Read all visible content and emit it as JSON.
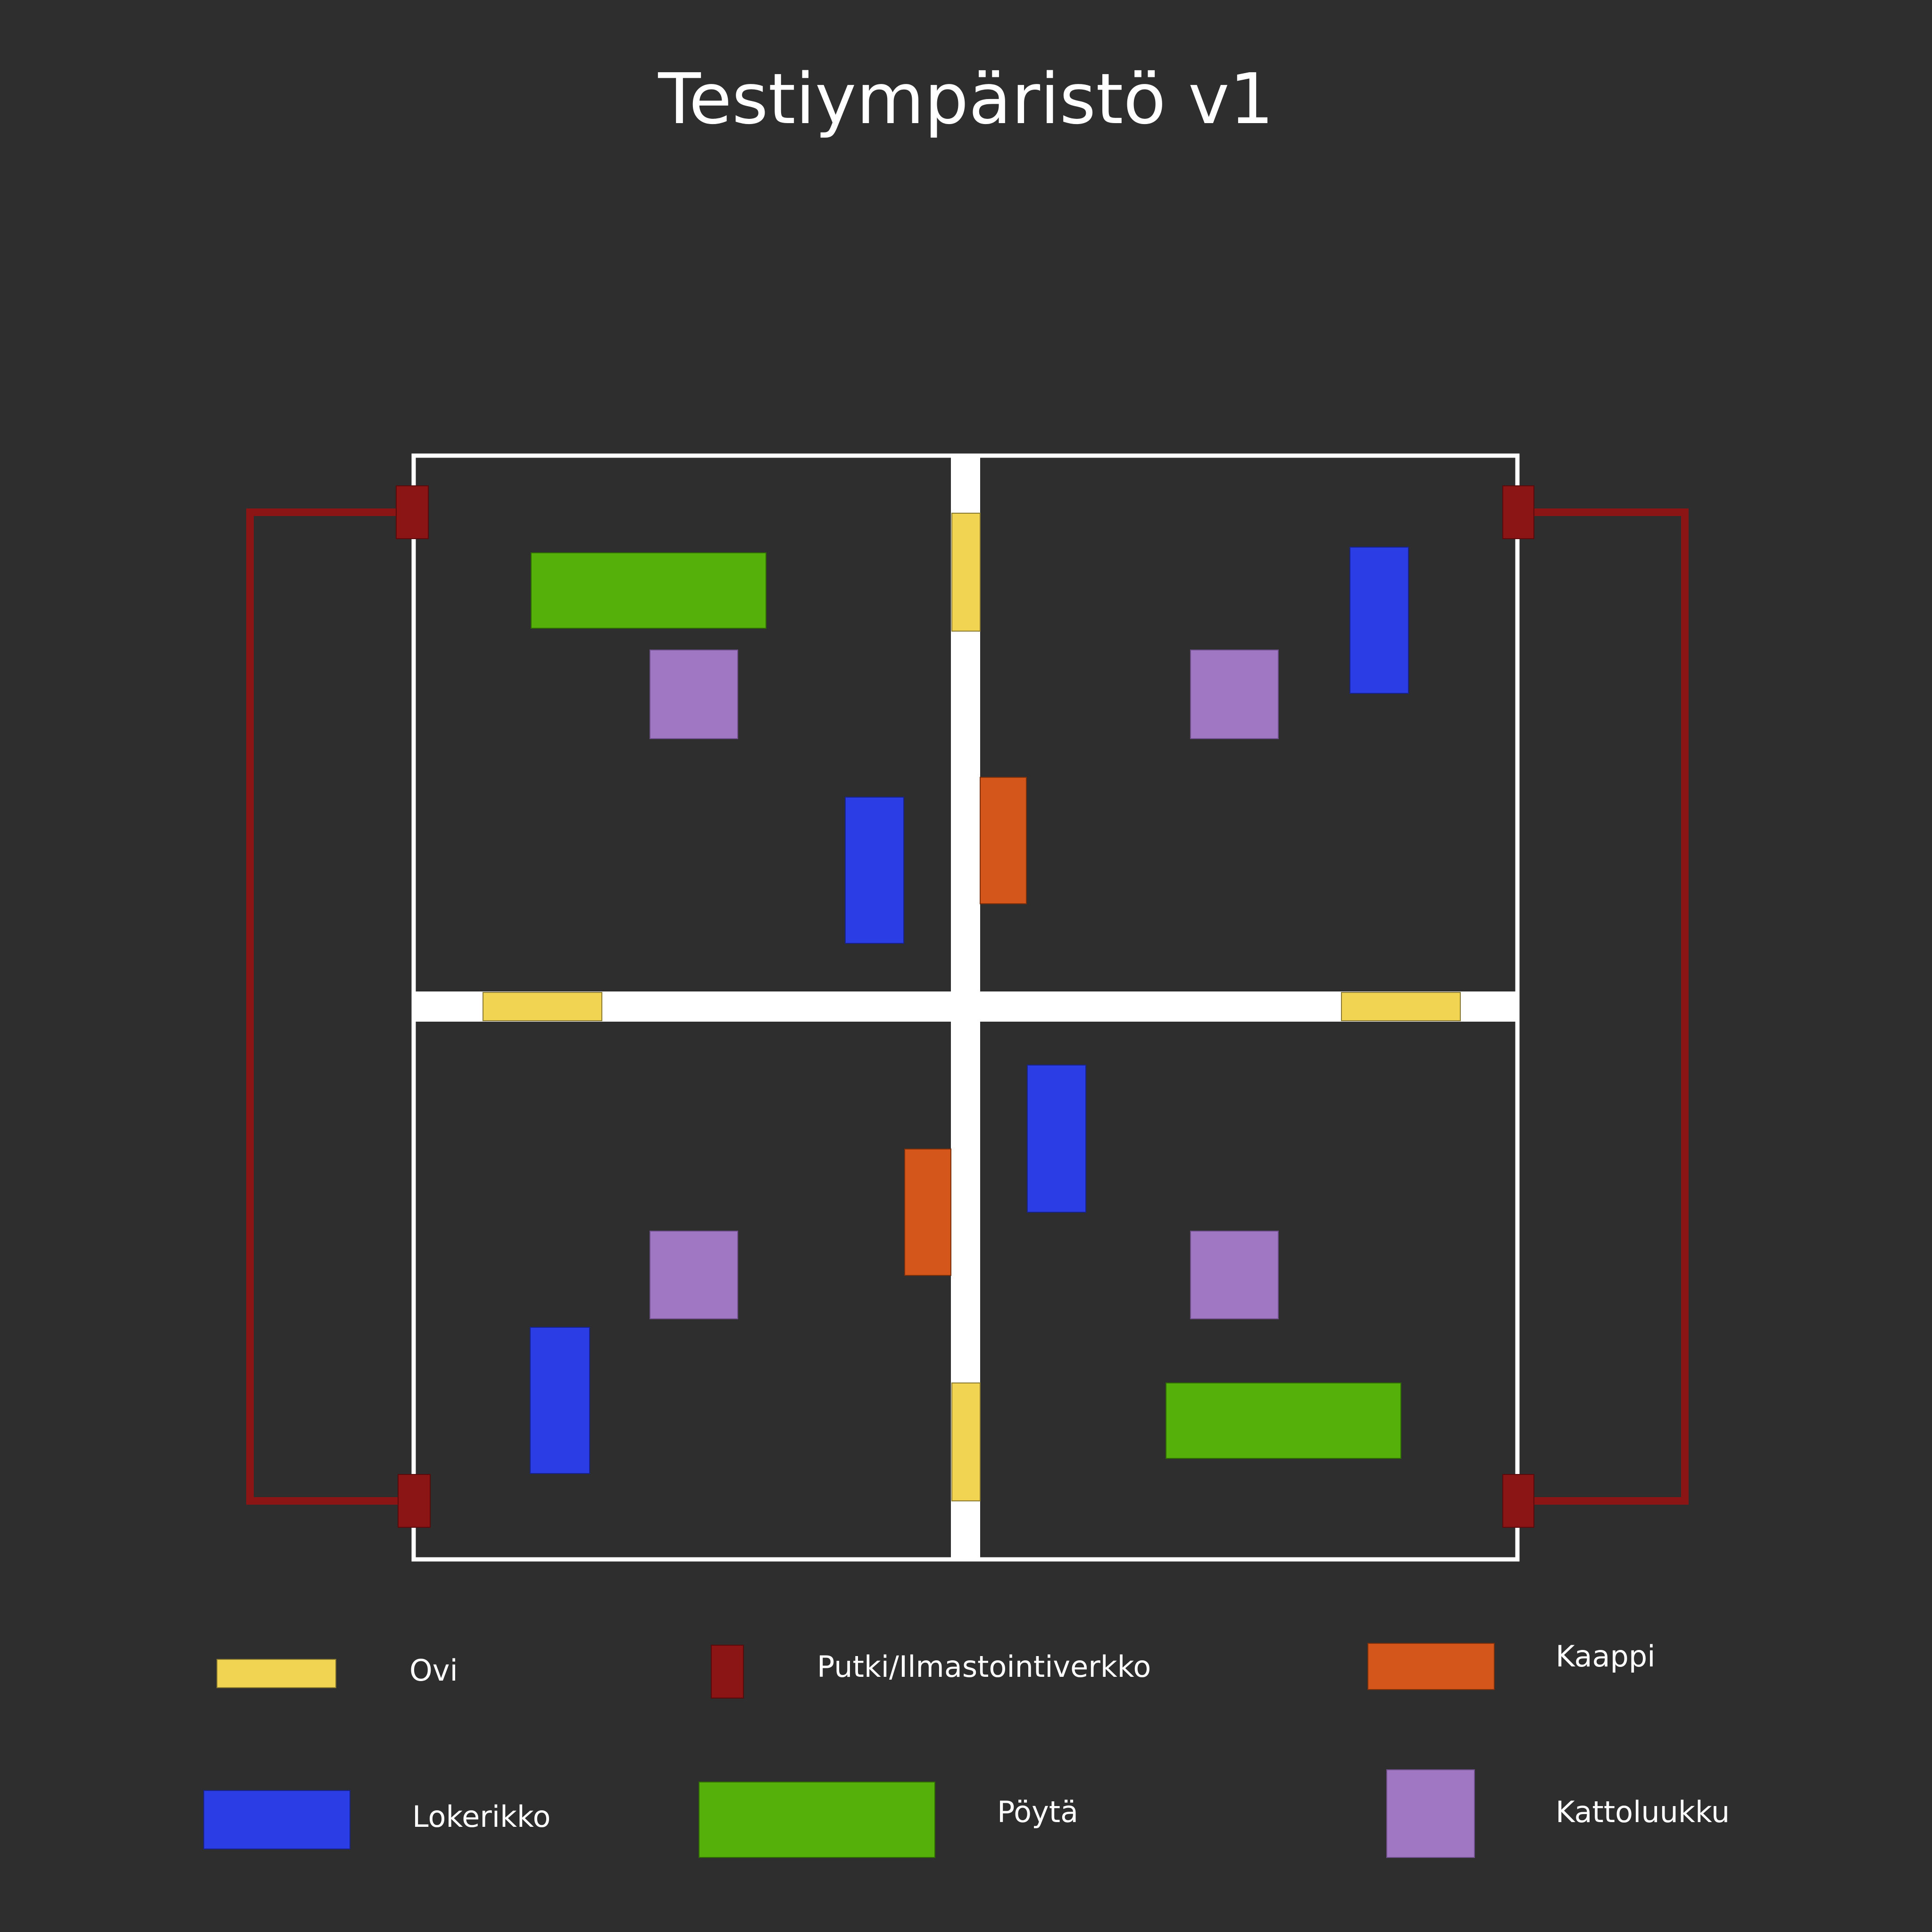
{
  "title": "Testiympäristö v1",
  "colors": {
    "background": "#2e2e2e",
    "wall": "#ffffff",
    "door": "#f0d452",
    "pipe": "#8b1414",
    "cabinet": "#d4561a",
    "locker": "#2b3ee6",
    "table": "#56b00a",
    "hatch": "#9f77c2"
  },
  "legend": {
    "door": {
      "label": "Ovi",
      "icon": "door-swatch"
    },
    "pipe": {
      "label": "Putki/Ilmastointiverkko",
      "icon": "pipe-swatch"
    },
    "cabinet": {
      "label": "Kaappi",
      "icon": "cabinet-swatch"
    },
    "locker": {
      "label": "Lokerikko",
      "icon": "locker-swatch"
    },
    "table": {
      "label": "Pöytä",
      "icon": "table-swatch"
    },
    "hatch": {
      "label": "Kattoluukku",
      "icon": "hatch-swatch"
    }
  }
}
